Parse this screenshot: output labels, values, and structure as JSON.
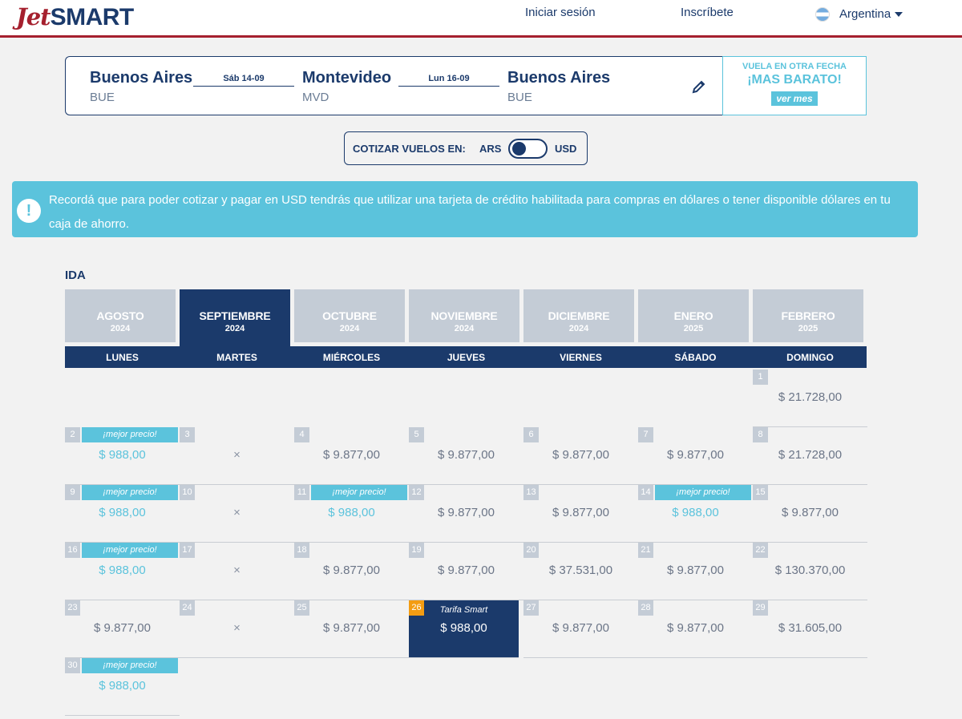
{
  "header": {
    "logo_jet": "Jet",
    "logo_smart": "SMART",
    "login": "Iniciar sesión",
    "signup": "Inscríbete",
    "country": "Argentina"
  },
  "route": {
    "origin": {
      "name": "Buenos Aires",
      "code": "BUE"
    },
    "outbound_date": "Sáb 14-09",
    "destination": {
      "name": "Montevideo",
      "code": "MVD"
    },
    "return_date": "Lun 16-09",
    "return_city": {
      "name": "Buenos Aires",
      "code": "BUE"
    }
  },
  "promo": {
    "line1": "VUELA EN OTRA FECHA",
    "line2": "¡MAS BARATO!",
    "button": "ver mes"
  },
  "currency": {
    "label": "COTIZAR VUELOS EN:",
    "left": "ARS",
    "right": "USD",
    "selected": "ARS"
  },
  "alert": {
    "icon": "!",
    "text": "Recordá que para poder cotizar y pagar en USD tendrás que utilizar una tarjeta de crédito habilitada para compras en dólares o tener disponible dólares en tu caja de ahorro."
  },
  "section_title": "IDA",
  "months": [
    {
      "name": "AGOSTO",
      "year": "2024"
    },
    {
      "name": "SEPTIEMBRE",
      "year": "2024",
      "active": true
    },
    {
      "name": "OCTUBRE",
      "year": "2024"
    },
    {
      "name": "NOVIEMBRE",
      "year": "2024"
    },
    {
      "name": "DICIEMBRE",
      "year": "2024"
    },
    {
      "name": "ENERO",
      "year": "2025"
    },
    {
      "name": "FEBRERO",
      "year": "2025"
    }
  ],
  "weekdays": [
    "LUNES",
    "MARTES",
    "MIÉRCOLES",
    "JUEVES",
    "VIERNES",
    "SÁBADO",
    "DOMINGO"
  ],
  "best_price_label": "¡mejor precio!",
  "smart_fare_label": "Tarifa Smart",
  "unavailable_mark": "×",
  "calendar": [
    {
      "day": "1",
      "price": "$ 21.728,00"
    },
    {
      "day": "2",
      "price": "$ 988,00",
      "best": true
    },
    {
      "day": "3",
      "unavailable": true
    },
    {
      "day": "4",
      "price": "$ 9.877,00"
    },
    {
      "day": "5",
      "price": "$ 9.877,00"
    },
    {
      "day": "6",
      "price": "$ 9.877,00"
    },
    {
      "day": "7",
      "price": "$ 9.877,00"
    },
    {
      "day": "8",
      "price": "$ 21.728,00"
    },
    {
      "day": "9",
      "price": "$ 988,00",
      "best": true
    },
    {
      "day": "10",
      "unavailable": true
    },
    {
      "day": "11",
      "price": "$ 988,00",
      "best": true
    },
    {
      "day": "12",
      "price": "$ 9.877,00"
    },
    {
      "day": "13",
      "price": "$ 9.877,00"
    },
    {
      "day": "14",
      "price": "$ 988,00",
      "best": true
    },
    {
      "day": "15",
      "price": "$ 9.877,00"
    },
    {
      "day": "16",
      "price": "$ 988,00",
      "best": true
    },
    {
      "day": "17",
      "unavailable": true
    },
    {
      "day": "18",
      "price": "$ 9.877,00"
    },
    {
      "day": "19",
      "price": "$ 9.877,00"
    },
    {
      "day": "20",
      "price": "$ 37.531,00"
    },
    {
      "day": "21",
      "price": "$ 9.877,00"
    },
    {
      "day": "22",
      "price": "$ 130.370,00"
    },
    {
      "day": "23",
      "price": "$ 9.877,00"
    },
    {
      "day": "24",
      "unavailable": true
    },
    {
      "day": "25",
      "price": "$ 9.877,00"
    },
    {
      "day": "26",
      "price": "$ 988,00",
      "selected": true
    },
    {
      "day": "27",
      "price": "$ 9.877,00"
    },
    {
      "day": "28",
      "price": "$ 9.877,00"
    },
    {
      "day": "29",
      "price": "$ 31.605,00"
    },
    {
      "day": "30",
      "price": "$ 988,00",
      "best": true
    }
  ],
  "colors": {
    "navy": "#1b3a6b",
    "brand_red": "#a5202e",
    "accent_cyan": "#5bc3dc",
    "selected_day": "#f39c12"
  }
}
